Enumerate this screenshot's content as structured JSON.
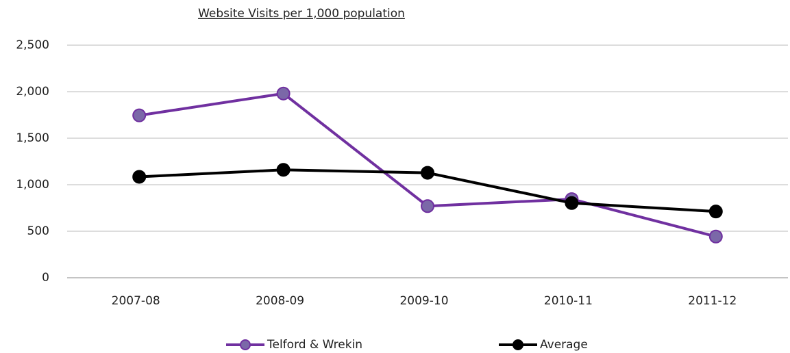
{
  "chart_data": {
    "type": "line",
    "title": "Website Visits per 1,000 population",
    "categories": [
      "2007-08",
      "2008-09",
      "2009-10",
      "2010-11",
      "2011-12"
    ],
    "series": [
      {
        "name": "Telford & Wrekin",
        "color": "#7030a0",
        "marker_fill": "#7b68a8",
        "values": [
          1745,
          1980,
          770,
          845,
          443
        ]
      },
      {
        "name": "Average",
        "color": "#000000",
        "marker_fill": "#000000",
        "values": [
          1085,
          1160,
          1128,
          803,
          712
        ]
      }
    ],
    "ylim": [
      0,
      2500
    ],
    "yticks": [
      0,
      500,
      {
        "value": 1000,
        "label": "1,000"
      },
      {
        "value": 1500,
        "label": "1,500"
      },
      {
        "value": 2000,
        "label": "2,000"
      },
      {
        "value": 2500,
        "label": "2,500"
      }
    ],
    "grid": true,
    "legend": "bottom"
  }
}
